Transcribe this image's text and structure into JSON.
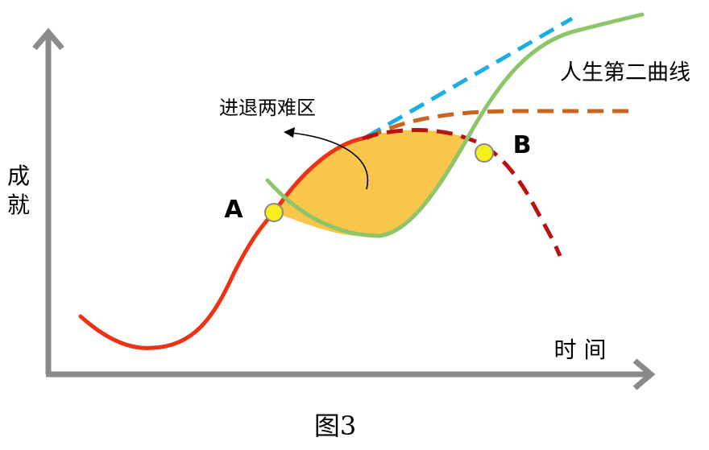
{
  "labels": {
    "y_axis": "成就",
    "x_axis": "时 间",
    "point_a": "A",
    "point_b": "B",
    "dilemma_zone": "进退两难区",
    "second_curve": "人生第二曲线"
  },
  "caption": "图3",
  "colors": {
    "axis": "#8a8a8a",
    "first_curve": "#f03214",
    "decline_dashed": "#b8140f",
    "extrapolation_dashed": "#1aaee3",
    "plateau_dashed": "#c9651f",
    "second_curve": "#8dc66a",
    "dilemma_fill": "#f8c64a",
    "point_fill": "#f6ef1b",
    "point_stroke": "#8a8a8a",
    "text": "#000000"
  },
  "icons": {
    "y_axis_arrow": "arrow-up",
    "x_axis_arrow": "arrow-right",
    "dilemma_pointer": "curved-arrow"
  }
}
